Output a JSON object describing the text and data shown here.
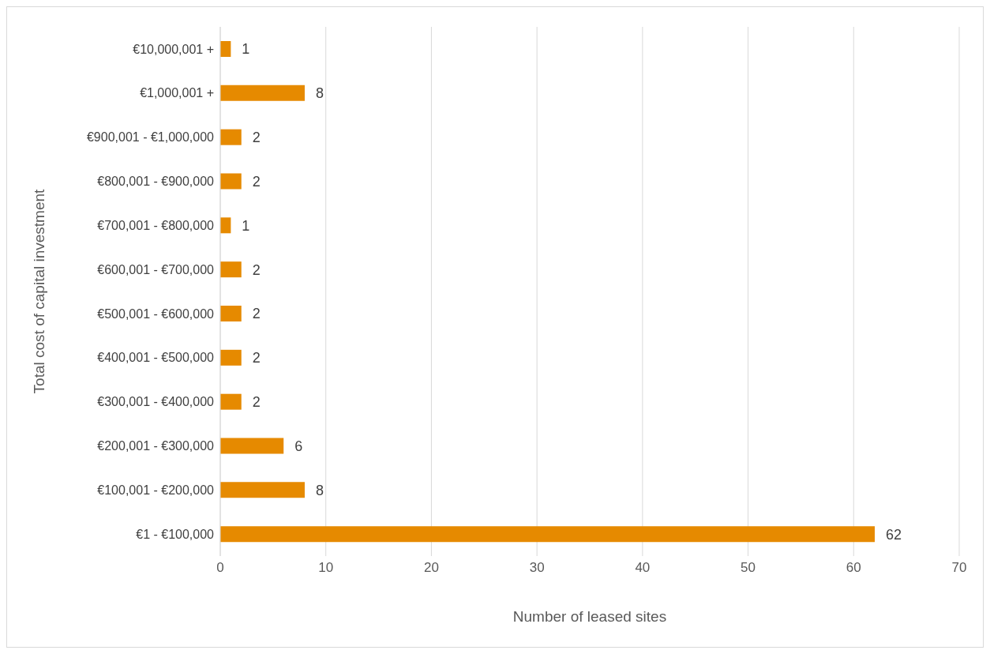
{
  "chart_data": {
    "type": "bar",
    "orientation": "horizontal",
    "xlabel": "Number of leased sites",
    "ylabel": "Total cost of capital investment",
    "categories": [
      "€10,000,001 +",
      "€1,000,001 +",
      "€900,001 - €1,000,000",
      "€800,001 - €900,000",
      "€700,001 - €800,000",
      "€600,001 - €700,000",
      "€500,001 - €600,000",
      "€400,001 - €500,000",
      "€300,001 - €400,000",
      "€200,001 - €300,000",
      "€100,001 - €200,000",
      "€1 - €100,000"
    ],
    "values": [
      1,
      8,
      2,
      2,
      1,
      2,
      2,
      2,
      2,
      6,
      8,
      62
    ],
    "color": "#e68a00",
    "xlim": [
      0,
      70
    ],
    "xticks": [
      0,
      10,
      20,
      30,
      40,
      50,
      60,
      70
    ],
    "grid": "x",
    "data_labels": true,
    "legend": false
  }
}
